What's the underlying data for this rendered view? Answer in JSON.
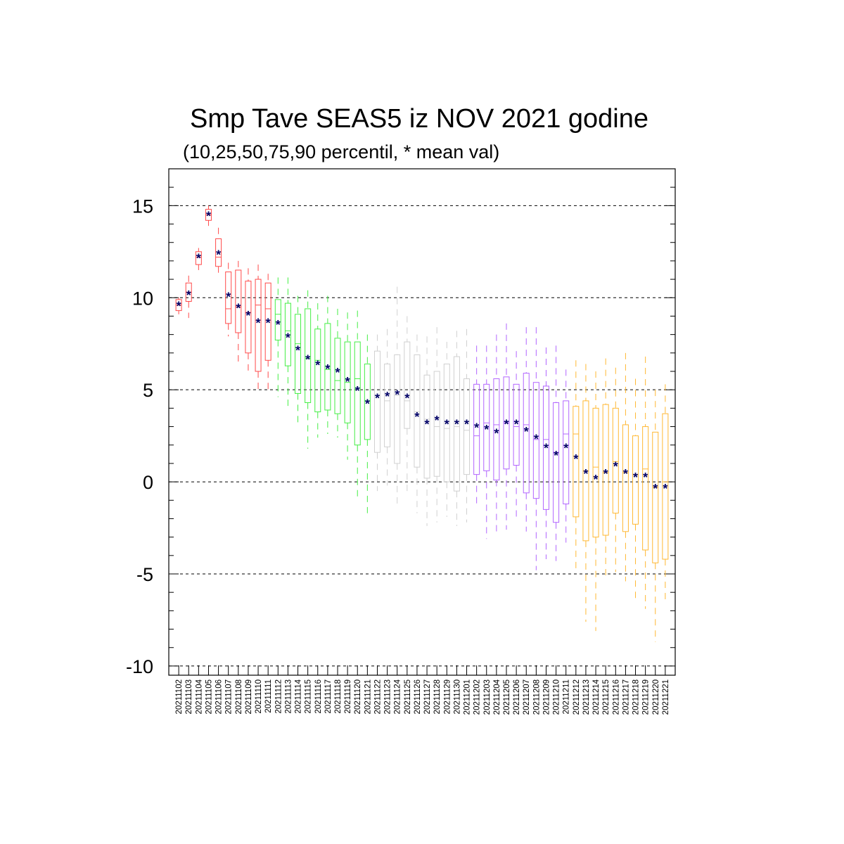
{
  "chart_data": {
    "type": "box",
    "title": "Smp Tave SEAS5 iz NOV 2021 godine",
    "subtitle": "(10,25,50,75,90 percentil, * mean val)",
    "xlabel": "",
    "ylabel": "",
    "ylim": [
      -10.5,
      17
    ],
    "yticks": [
      15,
      10,
      5,
      0,
      -5,
      -10
    ],
    "ytick_labels": [
      "15",
      "10",
      "5",
      "0",
      "-5",
      "-10"
    ],
    "grid": "horizontal dashed at major ticks",
    "mean_marker": "*",
    "mean_color": "#000066",
    "colors": {
      "Nov-A": "#ff4a4a",
      "Nov-B": "#44ee44",
      "Nov-C": "#d0d0d0",
      "Dec-A": "#b266ff",
      "Dec-B": "#ffb833"
    },
    "categories": [
      "20211102",
      "20211103",
      "20211104",
      "20211105",
      "20211106",
      "20211107",
      "20211108",
      "20211109",
      "20211110",
      "20211111",
      "20211112",
      "20211113",
      "20211114",
      "20211115",
      "20211116",
      "20211117",
      "20211118",
      "20211119",
      "20211120",
      "20211121",
      "20211122",
      "20211123",
      "20211124",
      "20211125",
      "20211126",
      "20211127",
      "20211128",
      "20211129",
      "20211130",
      "20211201",
      "20211202",
      "20211203",
      "20211204",
      "20211205",
      "20211206",
      "20211207",
      "20211208",
      "20211209",
      "20211210",
      "20211211",
      "20211212",
      "20211213",
      "20211214",
      "20211215",
      "20211216",
      "20211217",
      "20211218",
      "20211219",
      "20211220",
      "20211221"
    ],
    "boxes": [
      {
        "group": "Nov-A",
        "p10": 9.1,
        "p25": 9.3,
        "p50": 9.6,
        "p75": 9.9,
        "p90": 10.0,
        "mean": 9.6
      },
      {
        "group": "Nov-A",
        "p10": 8.9,
        "p25": 9.8,
        "p50": 10.3,
        "p75": 10.8,
        "p90": 11.2,
        "mean": 10.2
      },
      {
        "group": "Nov-A",
        "p10": 11.5,
        "p25": 11.8,
        "p50": 12.2,
        "p75": 12.5,
        "p90": 12.7,
        "mean": 12.2
      },
      {
        "group": "Nov-A",
        "p10": 13.9,
        "p25": 14.2,
        "p50": 14.5,
        "p75": 14.8,
        "p90": 15.0,
        "mean": 14.5
      },
      {
        "group": "Nov-A",
        "p10": 11.3,
        "p25": 11.7,
        "p50": 12.2,
        "p75": 13.2,
        "p90": 13.8,
        "mean": 12.4
      },
      {
        "group": "Nov-A",
        "p10": 7.9,
        "p25": 8.6,
        "p50": 9.4,
        "p75": 11.4,
        "p90": 11.9,
        "mean": 10.1
      },
      {
        "group": "Nov-A",
        "p10": 6.4,
        "p25": 8.1,
        "p50": 9.5,
        "p75": 11.5,
        "p90": 12.0,
        "mean": 9.5
      },
      {
        "group": "Nov-A",
        "p10": 5.8,
        "p25": 7.0,
        "p50": 9.2,
        "p75": 10.9,
        "p90": 11.6,
        "mean": 9.1
      },
      {
        "group": "Nov-A",
        "p10": 4.8,
        "p25": 6.0,
        "p50": 9.6,
        "p75": 11.0,
        "p90": 11.8,
        "mean": 8.7
      },
      {
        "group": "Nov-A",
        "p10": 5.0,
        "p25": 6.6,
        "p50": 9.4,
        "p75": 10.8,
        "p90": 11.3,
        "mean": 8.7
      },
      {
        "group": "Nov-B",
        "p10": 4.6,
        "p25": 7.7,
        "p50": 9.1,
        "p75": 9.9,
        "p90": 11.1,
        "mean": 8.6
      },
      {
        "group": "Nov-B",
        "p10": 4.1,
        "p25": 6.3,
        "p50": 8.2,
        "p75": 9.7,
        "p90": 11.1,
        "mean": 7.9
      },
      {
        "group": "Nov-B",
        "p10": 3.1,
        "p25": 4.8,
        "p50": 7.5,
        "p75": 9.1,
        "p90": 10.1,
        "mean": 7.2
      },
      {
        "group": "Nov-B",
        "p10": 1.8,
        "p25": 4.3,
        "p50": 6.7,
        "p75": 9.4,
        "p90": 10.4,
        "mean": 6.7
      },
      {
        "group": "Nov-B",
        "p10": 2.4,
        "p25": 3.8,
        "p50": 6.6,
        "p75": 8.3,
        "p90": 9.7,
        "mean": 6.4
      },
      {
        "group": "Nov-B",
        "p10": 2.6,
        "p25": 3.9,
        "p50": 6.1,
        "p75": 8.6,
        "p90": 10.1,
        "mean": 6.2
      },
      {
        "group": "Nov-B",
        "p10": 2.4,
        "p25": 3.7,
        "p50": 5.5,
        "p75": 7.8,
        "p90": 9.4,
        "mean": 6.0
      },
      {
        "group": "Nov-B",
        "p10": 1.2,
        "p25": 3.2,
        "p50": 5.4,
        "p75": 7.6,
        "p90": 9.2,
        "mean": 5.5
      },
      {
        "group": "Nov-B",
        "p10": -0.8,
        "p25": 2.0,
        "p50": 5.6,
        "p75": 7.6,
        "p90": 9.3,
        "mean": 5.0
      },
      {
        "group": "Nov-B",
        "p10": -1.7,
        "p25": 2.3,
        "p50": 4.4,
        "p75": 6.4,
        "p90": 8.0,
        "mean": 4.3
      },
      {
        "group": "Nov-C",
        "p10": -0.5,
        "p25": 1.6,
        "p50": 4.7,
        "p75": 7.1,
        "p90": 8.0,
        "mean": 4.6
      },
      {
        "group": "Nov-C",
        "p10": -0.2,
        "p25": 1.9,
        "p50": 4.4,
        "p75": 6.4,
        "p90": 8.3,
        "mean": 4.7
      },
      {
        "group": "Nov-C",
        "p10": -1.2,
        "p25": 1.0,
        "p50": 4.7,
        "p75": 6.9,
        "p90": 10.6,
        "mean": 4.8
      },
      {
        "group": "Nov-C",
        "p10": -0.6,
        "p25": 2.9,
        "p50": 4.4,
        "p75": 7.6,
        "p90": 9.0,
        "mean": 4.6
      },
      {
        "group": "Nov-C",
        "p10": -1.7,
        "p25": 0.8,
        "p50": 3.8,
        "p75": 6.9,
        "p90": 8.0,
        "mean": 3.6
      },
      {
        "group": "Nov-C",
        "p10": -2.4,
        "p25": 0.2,
        "p50": 3.4,
        "p75": 5.8,
        "p90": 7.9,
        "mean": 3.2
      },
      {
        "group": "Nov-C",
        "p10": -2.2,
        "p25": 0.3,
        "p50": 3.0,
        "p75": 6.0,
        "p90": 8.4,
        "mean": 3.4
      },
      {
        "group": "Nov-C",
        "p10": -1.9,
        "p25": 0.0,
        "p50": 2.9,
        "p75": 6.4,
        "p90": 7.6,
        "mean": 3.2
      },
      {
        "group": "Nov-C",
        "p10": -2.4,
        "p25": -0.5,
        "p50": 3.0,
        "p75": 6.8,
        "p90": 8.2,
        "mean": 3.2
      },
      {
        "group": "Nov-C",
        "p10": -2.2,
        "p25": 0.4,
        "p50": 2.8,
        "p75": 5.6,
        "p90": 8.3,
        "mean": 3.2
      },
      {
        "group": "Dec-A",
        "p10": -1.4,
        "p25": 0.4,
        "p50": 2.5,
        "p75": 5.3,
        "p90": 7.4,
        "mean": 3.0
      },
      {
        "group": "Dec-A",
        "p10": -3.1,
        "p25": 0.6,
        "p50": 3.2,
        "p75": 5.3,
        "p90": 7.4,
        "mean": 2.9
      },
      {
        "group": "Dec-A",
        "p10": -2.9,
        "p25": 0.1,
        "p50": 3.1,
        "p75": 5.6,
        "p90": 8.0,
        "mean": 2.7
      },
      {
        "group": "Dec-A",
        "p10": -2.6,
        "p25": 0.7,
        "p50": 3.2,
        "p75": 5.7,
        "p90": 8.6,
        "mean": 3.2
      },
      {
        "group": "Dec-A",
        "p10": -1.9,
        "p25": 0.9,
        "p50": 3.0,
        "p75": 5.3,
        "p90": 7.1,
        "mean": 3.2
      },
      {
        "group": "Dec-A",
        "p10": -2.7,
        "p25": -0.6,
        "p50": 3.1,
        "p75": 5.9,
        "p90": 8.4,
        "mean": 2.8
      },
      {
        "group": "Dec-A",
        "p10": -4.8,
        "p25": -0.9,
        "p50": 2.3,
        "p75": 5.4,
        "p90": 8.4,
        "mean": 2.4
      },
      {
        "group": "Dec-A",
        "p10": -4.2,
        "p25": -1.5,
        "p50": 2.3,
        "p75": 5.2,
        "p90": 7.3,
        "mean": 1.9
      },
      {
        "group": "Dec-A",
        "p10": -4.3,
        "p25": -2.2,
        "p50": 1.6,
        "p75": 4.3,
        "p90": 7.4,
        "mean": 1.5
      },
      {
        "group": "Dec-A",
        "p10": -3.3,
        "p25": -1.2,
        "p50": 2.6,
        "p75": 4.4,
        "p90": 6.1,
        "mean": 1.9
      },
      {
        "group": "Dec-B",
        "p10": -4.9,
        "p25": -1.9,
        "p50": 2.6,
        "p75": 4.1,
        "p90": 6.6,
        "mean": 1.3
      },
      {
        "group": "Dec-B",
        "p10": -7.6,
        "p25": -3.2,
        "p50": 0.6,
        "p75": 4.4,
        "p90": 6.4,
        "mean": 0.5
      },
      {
        "group": "Dec-B",
        "p10": -8.1,
        "p25": -3.0,
        "p50": 0.8,
        "p75": 4.0,
        "p90": 6.0,
        "mean": 0.2
      },
      {
        "group": "Dec-B",
        "p10": -5.1,
        "p25": -2.9,
        "p50": 0.5,
        "p75": 4.2,
        "p90": 6.7,
        "mean": 0.5
      },
      {
        "group": "Dec-B",
        "p10": -4.9,
        "p25": -1.7,
        "p50": 1.1,
        "p75": 4.0,
        "p90": 6.2,
        "mean": 0.9
      },
      {
        "group": "Dec-B",
        "p10": -5.4,
        "p25": -2.7,
        "p50": 0.5,
        "p75": 3.1,
        "p90": 7.0,
        "mean": 0.5
      },
      {
        "group": "Dec-B",
        "p10": -6.4,
        "p25": -2.3,
        "p50": 0.4,
        "p75": 2.5,
        "p90": 5.6,
        "mean": 0.3
      },
      {
        "group": "Dec-B",
        "p10": -6.9,
        "p25": -3.7,
        "p50": 0.7,
        "p75": 3.0,
        "p90": 6.8,
        "mean": 0.3
      },
      {
        "group": "Dec-B",
        "p10": -8.7,
        "p25": -4.4,
        "p50": -0.3,
        "p75": 2.7,
        "p90": 5.0,
        "mean": -0.3
      },
      {
        "group": "Dec-B",
        "p10": -6.6,
        "p25": -4.2,
        "p50": 0.0,
        "p75": 3.7,
        "p90": 5.3,
        "mean": -0.3
      }
    ]
  }
}
